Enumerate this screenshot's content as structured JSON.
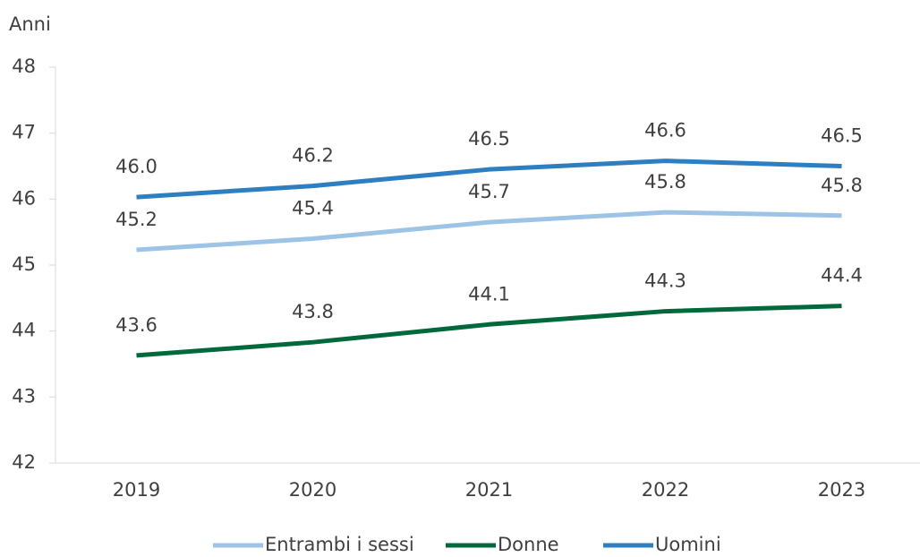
{
  "chart_data": {
    "type": "line",
    "y_axis_label": "Anni",
    "categories": [
      "2019",
      "2020",
      "2021",
      "2022",
      "2023"
    ],
    "series": [
      {
        "name": "Entrambi i sessi",
        "color": "#9dc3e6",
        "values": [
          45.23,
          45.4,
          45.65,
          45.8,
          45.75
        ],
        "value_labels": [
          "45.2",
          "45.4",
          "45.7",
          "45.8",
          "45.8"
        ]
      },
      {
        "name": "Donne",
        "color": "#00693c",
        "values": [
          43.63,
          43.83,
          44.1,
          44.3,
          44.38
        ],
        "value_labels": [
          "43.6",
          "43.8",
          "44.1",
          "44.3",
          "44.4"
        ]
      },
      {
        "name": "Uomini",
        "color": "#2e7fc1",
        "values": [
          46.03,
          46.2,
          46.45,
          46.58,
          46.5
        ],
        "value_labels": [
          "46.0",
          "46.2",
          "46.5",
          "46.6",
          "46.5"
        ]
      }
    ],
    "ylim": [
      42,
      48
    ],
    "yticks": [
      42,
      43,
      44,
      45,
      46,
      47,
      48
    ],
    "legend": "bottom"
  }
}
